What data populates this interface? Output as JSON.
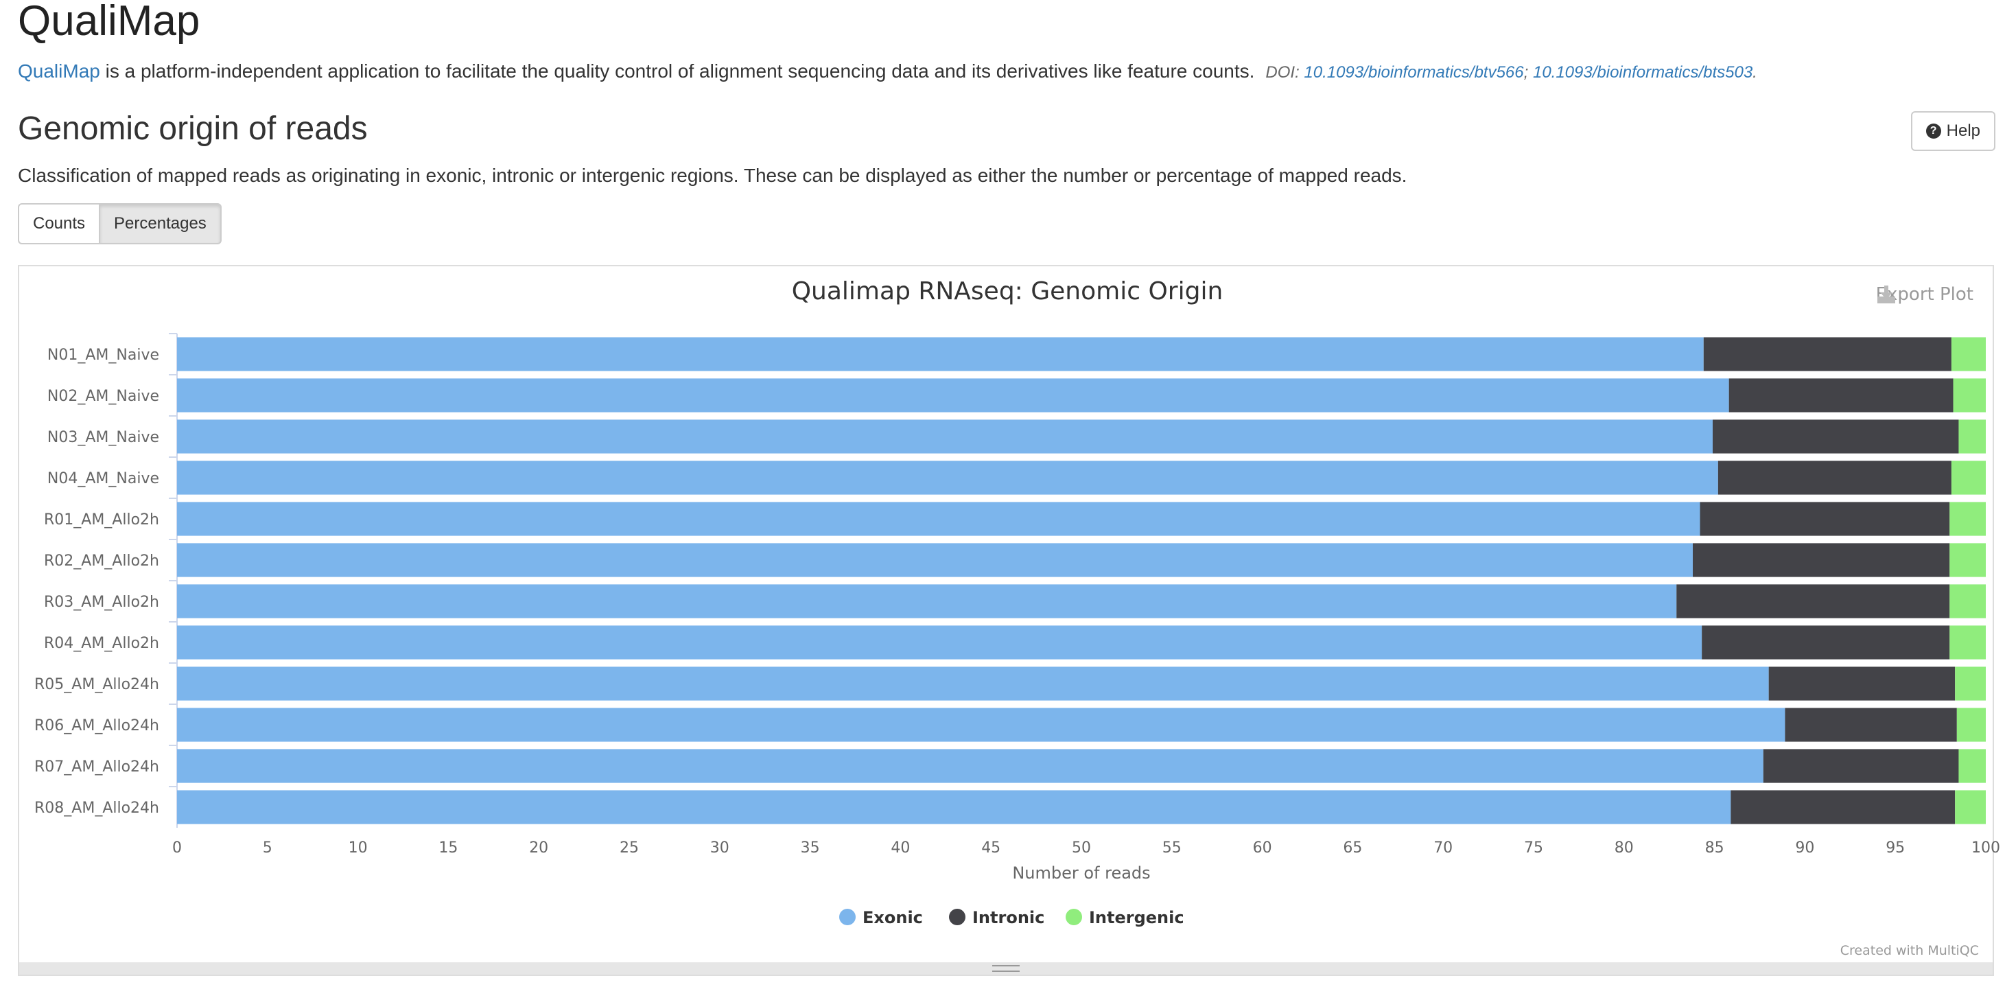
{
  "header": {
    "app_title": "QualiMap",
    "intro_link": "QualiMap",
    "intro_text": " is a platform-independent application to facilitate the quality control of alignment sequencing data and its derivatives like feature counts.",
    "doi_label": "DOI: ",
    "doi_1": "10.1093/bioinformatics/btv566",
    "doi_sep": "; ",
    "doi_2": "10.1093/bioinformatics/bts503",
    "doi_end": "."
  },
  "section": {
    "title": "Genomic origin of reads",
    "help_label": "Help",
    "description": "Classification of mapped reads as originating in exonic, intronic or intergenic regions. These can be displayed as either the number or percentage of mapped reads.",
    "toggle": {
      "counts": "Counts",
      "percentages": "Percentages",
      "active": "percentages"
    }
  },
  "plot": {
    "export_label": "Export Plot",
    "credit": "Created with MultiQC"
  },
  "chart_data": {
    "type": "bar",
    "orientation": "horizontal",
    "stacked": true,
    "title": "Qualimap RNAseq: Genomic Origin",
    "xlabel": "Number of reads",
    "ylabel": "",
    "xlim": [
      0,
      100
    ],
    "xticks": [
      0,
      5,
      10,
      15,
      20,
      25,
      30,
      35,
      40,
      45,
      50,
      55,
      60,
      65,
      70,
      75,
      80,
      85,
      90,
      95,
      100
    ],
    "legend_position": "bottom-center",
    "categories": [
      "N01_AM_Naive",
      "N02_AM_Naive",
      "N03_AM_Naive",
      "N04_AM_Naive",
      "R01_AM_Allo2h",
      "R02_AM_Allo2h",
      "R03_AM_Allo2h",
      "R04_AM_Allo2h",
      "R05_AM_Allo24h",
      "R06_AM_Allo24h",
      "R07_AM_Allo24h",
      "R08_AM_Allo24h"
    ],
    "series": [
      {
        "name": "Exonic",
        "color": "#7cb5ec",
        "values": [
          84.4,
          85.8,
          84.9,
          85.2,
          84.2,
          83.8,
          82.9,
          84.3,
          88.0,
          88.9,
          87.7,
          85.9
        ]
      },
      {
        "name": "Intronic",
        "color": "#434348",
        "values": [
          13.7,
          12.4,
          13.6,
          12.9,
          13.8,
          14.2,
          15.1,
          13.7,
          10.3,
          9.5,
          10.8,
          12.4
        ]
      },
      {
        "name": "Intergenic",
        "color": "#90ed7d",
        "values": [
          1.9,
          1.8,
          1.5,
          1.9,
          2.0,
          2.0,
          2.0,
          2.0,
          1.7,
          1.6,
          1.5,
          1.7
        ]
      }
    ]
  }
}
